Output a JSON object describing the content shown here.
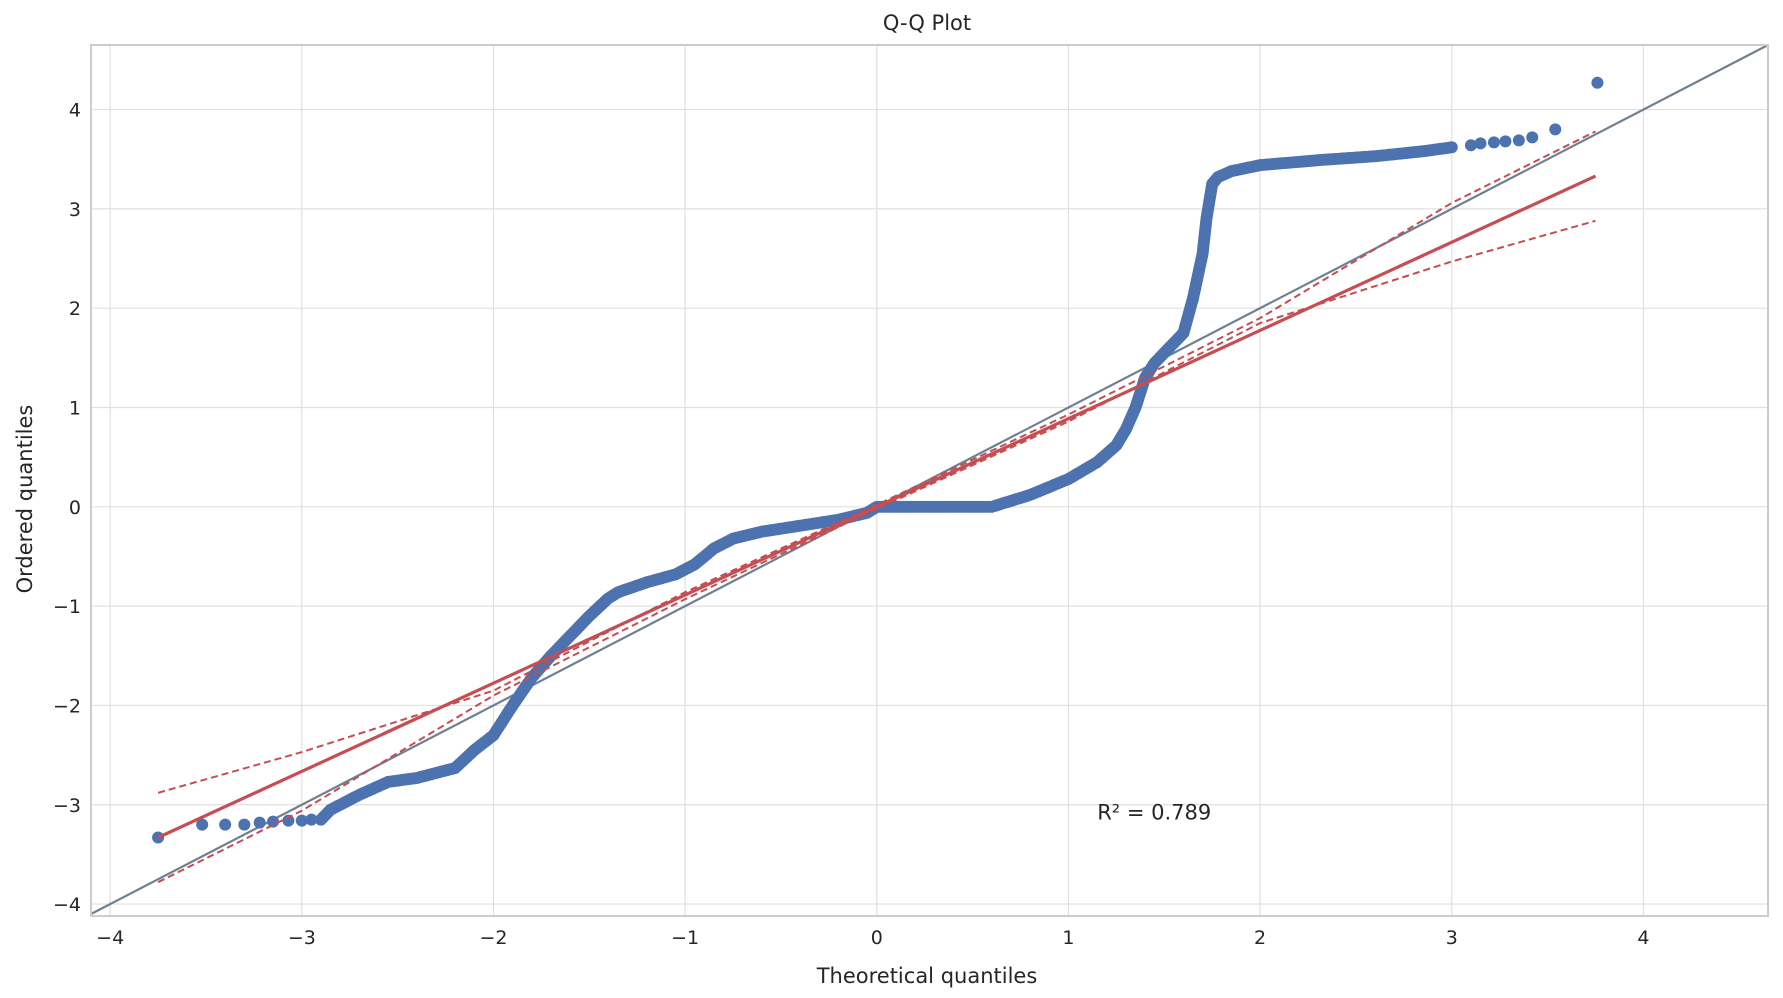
{
  "chart_data": {
    "type": "scatter",
    "title": "Q-Q Plot",
    "xlabel": "Theoretical quantiles",
    "ylabel": "Ordered quantiles",
    "xlim": [
      -4.1,
      4.65
    ],
    "ylim": [
      -4.12,
      4.65
    ],
    "xticks": [
      -4,
      -3,
      -2,
      -1,
      0,
      1,
      2,
      3,
      4
    ],
    "yticks": [
      -4,
      -3,
      -2,
      -1,
      0,
      1,
      2,
      3,
      4
    ],
    "xtick_labels": [
      "−4",
      "−3",
      "−2",
      "−1",
      "0",
      "1",
      "2",
      "3",
      "4"
    ],
    "ytick_labels": [
      "−4",
      "−3",
      "−2",
      "−1",
      "0",
      "1",
      "2",
      "3",
      "4"
    ],
    "grid": true,
    "annotation": {
      "label": "R² = 0.789",
      "x": 1.15,
      "y": -3.15
    },
    "colors": {
      "points": "#4c72b0",
      "fit": "#c44e52",
      "reference": "#708090",
      "grid": "#e0e0e0",
      "spine": "#cccccc"
    },
    "reference_line": {
      "slope": 1,
      "intercept": 0
    },
    "fit_line": {
      "x": [
        -3.75,
        3.75
      ],
      "y": [
        -3.33,
        3.33
      ]
    },
    "ci_upper": {
      "x": [
        -3.75,
        -3.0,
        -2.0,
        -1.0,
        0.0,
        1.0,
        2.0,
        3.0,
        3.75
      ],
      "y": [
        -2.88,
        -2.47,
        -1.85,
        -0.86,
        0.02,
        0.93,
        1.9,
        3.06,
        3.78
      ]
    },
    "ci_lower": {
      "x": [
        -3.75,
        -3.0,
        -2.0,
        -1.0,
        0.0,
        1.0,
        2.0,
        3.0,
        3.75
      ],
      "y": [
        -3.78,
        -3.06,
        -1.9,
        -0.93,
        -0.02,
        0.86,
        1.85,
        2.47,
        2.88
      ]
    },
    "points_curve": {
      "x": [
        -2.9,
        -2.85,
        -2.7,
        -2.55,
        -2.4,
        -2.2,
        -2.1,
        -2.0,
        -1.9,
        -1.8,
        -1.7,
        -1.6,
        -1.5,
        -1.4,
        -1.35,
        -1.2,
        -1.05,
        -0.95,
        -0.85,
        -0.75,
        -0.6,
        -0.4,
        -0.2,
        -0.05,
        0.0,
        0.3,
        0.6,
        0.8,
        1.0,
        1.15,
        1.25,
        1.3,
        1.35,
        1.4,
        1.45,
        1.5,
        1.6,
        1.65,
        1.7,
        1.72,
        1.75,
        1.78,
        1.85,
        2.0,
        2.3,
        2.6,
        2.85,
        3.0
      ],
      "y": [
        -3.15,
        -3.05,
        -2.9,
        -2.77,
        -2.73,
        -2.63,
        -2.45,
        -2.3,
        -2.0,
        -1.72,
        -1.5,
        -1.3,
        -1.1,
        -0.92,
        -0.86,
        -0.76,
        -0.68,
        -0.58,
        -0.42,
        -0.32,
        -0.25,
        -0.19,
        -0.13,
        -0.06,
        0.0,
        0.0,
        0.0,
        0.12,
        0.28,
        0.45,
        0.62,
        0.78,
        1.0,
        1.3,
        1.45,
        1.55,
        1.75,
        2.1,
        2.55,
        2.9,
        3.25,
        3.32,
        3.38,
        3.44,
        3.49,
        3.53,
        3.58,
        3.62
      ]
    },
    "outlier_points": {
      "x": [
        -3.75,
        -3.52,
        -3.4,
        -3.3,
        -3.22,
        -3.15,
        -3.07,
        -3.0,
        -2.95,
        3.1,
        3.15,
        3.22,
        3.28,
        3.35,
        3.42,
        3.54,
        3.76
      ],
      "y": [
        -3.33,
        -3.2,
        -3.2,
        -3.2,
        -3.18,
        -3.17,
        -3.16,
        -3.16,
        -3.15,
        3.64,
        3.66,
        3.67,
        3.68,
        3.69,
        3.72,
        3.8,
        4.27
      ]
    }
  }
}
